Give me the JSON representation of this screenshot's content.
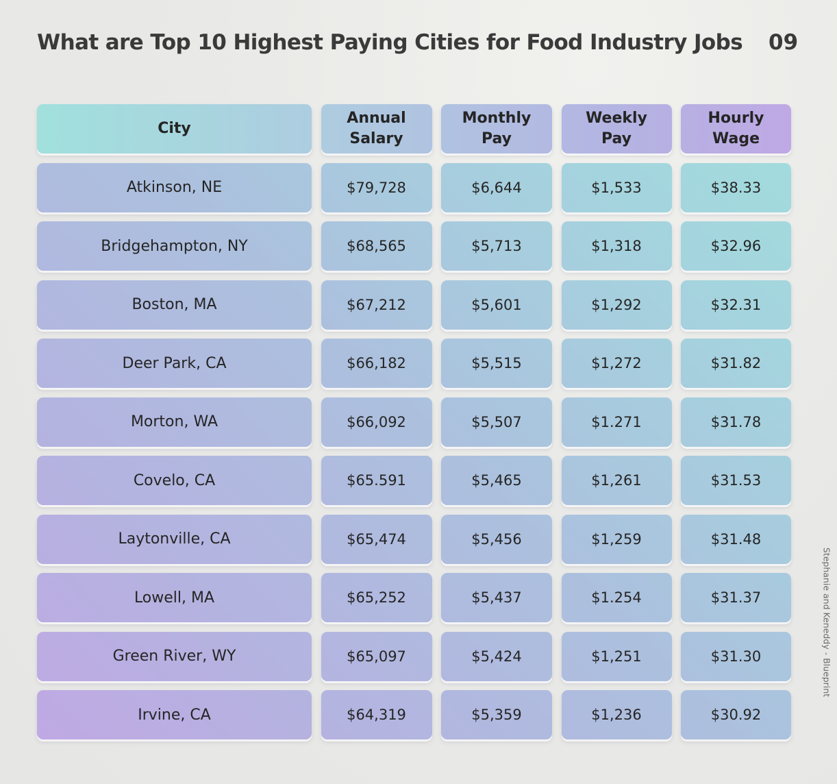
{
  "title": "What are Top 10 Highest Paying Cities for Food Industry Jobs",
  "page_number": "09",
  "credit": "Stephanie and Keneddy - Blueprint",
  "chart_data": {
    "type": "table",
    "title": "What are Top 10 Highest Paying Cities for Food Industry Jobs",
    "columns": [
      "City",
      "Annual Salary",
      "Monthly Pay",
      "Weekly Pay",
      "Hourly Wage"
    ],
    "rows": [
      [
        "Atkinson, NE",
        "$79,728",
        "$6,644",
        "$1,533",
        "$38.33"
      ],
      [
        "Bridgehampton, NY",
        "$68,565",
        "$5,713",
        "$1,318",
        "$32.96"
      ],
      [
        "Boston, MA",
        "$67,212",
        "$5,601",
        "$1,292",
        "$32.31"
      ],
      [
        "Deer Park, CA",
        "$66,182",
        "$5,515",
        "$1,272",
        "$31.82"
      ],
      [
        "Morton, WA",
        "$66,092",
        "$5,507",
        "$1.271",
        "$31.78"
      ],
      [
        "Covelo, CA",
        "$65.591",
        "$5,465",
        "$1,261",
        "$31.53"
      ],
      [
        "Laytonville, CA",
        "$65,474",
        "$5,456",
        "$1,259",
        "$31.48"
      ],
      [
        "Lowell, MA",
        "$65,252",
        "$5,437",
        "$1.254",
        "$31.37"
      ],
      [
        "Green River, WY",
        "$65,097",
        "$5,424",
        "$1,251",
        "$31.30"
      ],
      [
        "Irvine, CA",
        "$64,319",
        "$5,359",
        "$1,236",
        "$30.92"
      ]
    ]
  }
}
